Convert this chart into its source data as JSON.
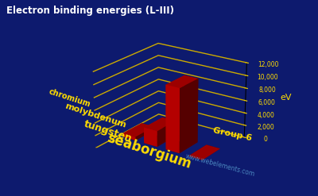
{
  "title": "Electron binding energies (L-III)",
  "ylabel": "eV",
  "group_label": "Group 6",
  "website": "www.webelements.com",
  "elements": [
    "chromium",
    "molybdenum",
    "tungsten",
    "seaborgium"
  ],
  "values": [
    574,
    2520,
    10207,
    0
  ],
  "ylim": [
    0,
    12000
  ],
  "yticks": [
    0,
    2000,
    4000,
    6000,
    8000,
    10000,
    12000
  ],
  "bar_color": "#cc0000",
  "background_color": "#0d1a6e",
  "grid_color": "#ccaa00",
  "title_color": "#ffffff",
  "label_color": "#ffdd00",
  "website_color": "#5599cc"
}
